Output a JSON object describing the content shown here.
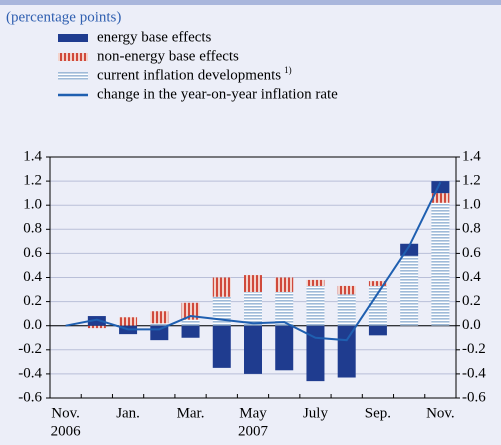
{
  "chart_data": {
    "type": "bar",
    "title": "(percentage points)",
    "categories": [
      "Nov.",
      null,
      "Jan.",
      null,
      "Mar.",
      null,
      "May",
      null,
      "July",
      null,
      "Sep.",
      null,
      "Nov."
    ],
    "annotations": [
      "2006",
      "2007"
    ],
    "legend_footnote": "1)",
    "series": [
      {
        "name": "energy base effects",
        "color": "#1f3c8f",
        "pattern": "solid",
        "values": [
          0,
          0.08,
          -0.07,
          -0.12,
          -0.1,
          -0.35,
          -0.4,
          -0.37,
          -0.46,
          -0.43,
          -0.08,
          0.1,
          0.1
        ]
      },
      {
        "name": "non-energy base effects",
        "color": "#d04a3c",
        "pattern": "vertical-stripes",
        "values": [
          0,
          -0.02,
          0.07,
          0.1,
          0.14,
          0.16,
          0.14,
          0.12,
          0.05,
          0.07,
          0.04,
          0,
          0.08
        ]
      },
      {
        "name": "current inflation developments",
        "color": "#9fbad8",
        "pattern": "horizontal-stripes",
        "values": [
          0,
          0,
          0,
          0.02,
          0.05,
          0.24,
          0.28,
          0.28,
          0.33,
          0.26,
          0.33,
          0.58,
          1.02
        ]
      },
      {
        "name": "change in the year-on-year inflation rate",
        "color": "#1f5fb0",
        "type": "line",
        "values": [
          0,
          0.05,
          -0.03,
          -0.03,
          0.08,
          0.05,
          0.02,
          0.03,
          -0.1,
          -0.12,
          0.27,
          0.66,
          1.19
        ]
      }
    ],
    "ylim": [
      -0.6,
      1.4
    ],
    "yticks": [
      -0.6,
      -0.4,
      -0.2,
      {
        "value": 0,
        "label": "0.0"
      },
      0.2,
      0.4,
      0.6,
      0.8,
      {
        "value": 1,
        "label": "1.0"
      },
      1.2,
      1.4
    ],
    "y2lim": [
      -0.6,
      1.4
    ],
    "y2ticks": [
      -0.6,
      -0.4,
      -0.2,
      {
        "value": 0,
        "label": "0.0"
      },
      0.2,
      0.4,
      0.6,
      0.8,
      {
        "value": 1,
        "label": "1.0"
      },
      1.2,
      1.4
    ],
    "grid": true
  }
}
